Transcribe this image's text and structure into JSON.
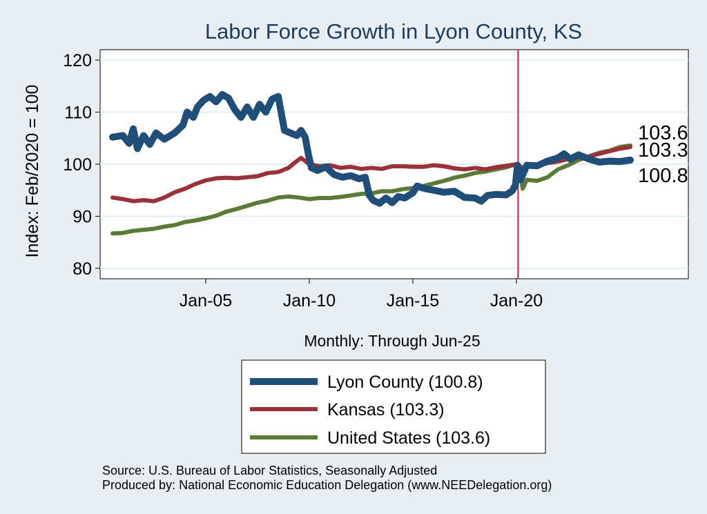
{
  "chart_data": {
    "type": "line",
    "title": "Labor Force Growth in Lyon  County, KS",
    "ylabel": "Index: Feb/2020 = 100",
    "xlabel": "Monthly: Through Jun-25",
    "ylim": [
      78,
      122
    ],
    "xlim": [
      1999.9,
      2028.3
    ],
    "yticks": [
      80,
      90,
      100,
      110,
      120
    ],
    "xticks": [
      {
        "x": 2005,
        "label": "Jan-05"
      },
      {
        "x": 2010,
        "label": "Jan-10"
      },
      {
        "x": 2015,
        "label": "Jan-15"
      },
      {
        "x": 2020,
        "label": "Jan-20"
      }
    ],
    "reference_line": {
      "x": 2020.08,
      "color": "#b5253d"
    },
    "grid": "horizontal",
    "series": [
      {
        "name": "Lyon  County",
        "color": "#1f4e79",
        "width": 10,
        "last_value": 100.8,
        "legend": "Lyon  County (100.8)",
        "points": [
          [
            2000.5,
            105.2
          ],
          [
            2001.0,
            105.5
          ],
          [
            2001.3,
            104.0
          ],
          [
            2001.5,
            106.8
          ],
          [
            2001.7,
            103.0
          ],
          [
            2002.0,
            105.5
          ],
          [
            2002.3,
            103.8
          ],
          [
            2002.6,
            106.0
          ],
          [
            2003.0,
            104.8
          ],
          [
            2003.5,
            106.0
          ],
          [
            2003.9,
            107.5
          ],
          [
            2004.1,
            110.0
          ],
          [
            2004.4,
            109.0
          ],
          [
            2004.6,
            111.0
          ],
          [
            2004.9,
            112.3
          ],
          [
            2005.2,
            113.0
          ],
          [
            2005.5,
            112.0
          ],
          [
            2005.8,
            113.4
          ],
          [
            2006.1,
            112.7
          ],
          [
            2006.4,
            110.5
          ],
          [
            2006.7,
            109.0
          ],
          [
            2007.0,
            111.0
          ],
          [
            2007.3,
            109.0
          ],
          [
            2007.6,
            111.5
          ],
          [
            2007.9,
            110.0
          ],
          [
            2008.2,
            112.5
          ],
          [
            2008.5,
            113.0
          ],
          [
            2008.8,
            106.5
          ],
          [
            2009.1,
            106.0
          ],
          [
            2009.4,
            105.5
          ],
          [
            2009.6,
            106.5
          ],
          [
            2009.8,
            105.2
          ],
          [
            2009.95,
            102.0
          ],
          [
            2010.1,
            99.3
          ],
          [
            2010.4,
            98.8
          ],
          [
            2010.8,
            99.5
          ],
          [
            2011.2,
            98.0
          ],
          [
            2011.6,
            97.5
          ],
          [
            2012.0,
            97.8
          ],
          [
            2012.4,
            97.2
          ],
          [
            2012.7,
            97.5
          ],
          [
            2012.9,
            94.0
          ],
          [
            2013.1,
            93.0
          ],
          [
            2013.4,
            92.5
          ],
          [
            2013.7,
            93.5
          ],
          [
            2014.0,
            92.6
          ],
          [
            2014.3,
            93.8
          ],
          [
            2014.6,
            93.5
          ],
          [
            2015.0,
            94.5
          ],
          [
            2015.2,
            95.8
          ],
          [
            2015.6,
            95.3
          ],
          [
            2016.0,
            95.0
          ],
          [
            2016.5,
            94.6
          ],
          [
            2017.0,
            94.8
          ],
          [
            2017.5,
            93.6
          ],
          [
            2018.0,
            93.5
          ],
          [
            2018.3,
            92.9
          ],
          [
            2018.6,
            94.0
          ],
          [
            2019.0,
            94.2
          ],
          [
            2019.5,
            94.1
          ],
          [
            2019.8,
            94.9
          ],
          [
            2019.95,
            96.0
          ],
          [
            2020.05,
            99.8
          ],
          [
            2020.2,
            97.0
          ],
          [
            2020.5,
            99.8
          ],
          [
            2021.0,
            99.7
          ],
          [
            2021.5,
            100.6
          ],
          [
            2022.0,
            101.2
          ],
          [
            2022.3,
            102.0
          ],
          [
            2022.6,
            101.0
          ],
          [
            2023.0,
            101.8
          ],
          [
            2023.5,
            101.0
          ],
          [
            2024.0,
            100.4
          ],
          [
            2024.5,
            100.6
          ],
          [
            2025.0,
            100.5
          ],
          [
            2025.5,
            100.8
          ]
        ]
      },
      {
        "name": "Kansas",
        "color": "#9b3139",
        "width": 6,
        "last_value": 103.3,
        "legend": "Kansas (103.3)",
        "points": [
          [
            2000.5,
            93.6
          ],
          [
            2001.0,
            93.3
          ],
          [
            2001.5,
            92.9
          ],
          [
            2002.0,
            93.1
          ],
          [
            2002.5,
            92.9
          ],
          [
            2003.0,
            93.6
          ],
          [
            2003.5,
            94.6
          ],
          [
            2004.0,
            95.3
          ],
          [
            2004.5,
            96.2
          ],
          [
            2005.0,
            96.9
          ],
          [
            2005.5,
            97.3
          ],
          [
            2006.0,
            97.4
          ],
          [
            2006.5,
            97.3
          ],
          [
            2007.0,
            97.5
          ],
          [
            2007.5,
            97.7
          ],
          [
            2008.0,
            98.3
          ],
          [
            2008.5,
            98.5
          ],
          [
            2009.0,
            99.3
          ],
          [
            2009.3,
            100.3
          ],
          [
            2009.6,
            101.2
          ],
          [
            2010.0,
            100.0
          ],
          [
            2010.5,
            99.6
          ],
          [
            2011.0,
            99.8
          ],
          [
            2011.5,
            99.3
          ],
          [
            2012.0,
            99.5
          ],
          [
            2012.5,
            99.1
          ],
          [
            2013.0,
            99.3
          ],
          [
            2013.5,
            99.1
          ],
          [
            2014.0,
            99.6
          ],
          [
            2014.5,
            99.6
          ],
          [
            2015.0,
            99.5
          ],
          [
            2015.5,
            99.5
          ],
          [
            2016.0,
            99.8
          ],
          [
            2016.5,
            99.6
          ],
          [
            2017.0,
            99.2
          ],
          [
            2017.5,
            99.0
          ],
          [
            2018.0,
            99.3
          ],
          [
            2018.5,
            99.0
          ],
          [
            2019.0,
            99.4
          ],
          [
            2019.5,
            99.7
          ],
          [
            2020.0,
            100.0
          ],
          [
            2020.3,
            99.3
          ],
          [
            2020.6,
            100.0
          ],
          [
            2021.0,
            99.8
          ],
          [
            2021.5,
            100.2
          ],
          [
            2022.0,
            100.5
          ],
          [
            2022.5,
            101.0
          ],
          [
            2023.0,
            101.3
          ],
          [
            2023.5,
            101.5
          ],
          [
            2024.0,
            102.0
          ],
          [
            2024.5,
            102.5
          ],
          [
            2025.0,
            103.0
          ],
          [
            2025.5,
            103.3
          ]
        ]
      },
      {
        "name": "United States",
        "color": "#5a7a35",
        "width": 6,
        "last_value": 103.6,
        "legend": "United States (103.6)",
        "points": [
          [
            2000.5,
            86.7
          ],
          [
            2001.0,
            86.8
          ],
          [
            2001.5,
            87.2
          ],
          [
            2002.0,
            87.4
          ],
          [
            2002.5,
            87.6
          ],
          [
            2003.0,
            88.0
          ],
          [
            2003.5,
            88.3
          ],
          [
            2004.0,
            88.9
          ],
          [
            2004.5,
            89.2
          ],
          [
            2005.0,
            89.6
          ],
          [
            2005.5,
            90.1
          ],
          [
            2006.0,
            90.9
          ],
          [
            2006.5,
            91.4
          ],
          [
            2007.0,
            92.0
          ],
          [
            2007.5,
            92.6
          ],
          [
            2008.0,
            93.0
          ],
          [
            2008.5,
            93.6
          ],
          [
            2009.0,
            93.8
          ],
          [
            2009.5,
            93.6
          ],
          [
            2010.0,
            93.3
          ],
          [
            2010.5,
            93.5
          ],
          [
            2011.0,
            93.5
          ],
          [
            2011.5,
            93.7
          ],
          [
            2012.0,
            94.0
          ],
          [
            2012.5,
            94.3
          ],
          [
            2013.0,
            94.4
          ],
          [
            2013.5,
            94.8
          ],
          [
            2014.0,
            94.8
          ],
          [
            2014.5,
            95.2
          ],
          [
            2015.0,
            95.4
          ],
          [
            2015.5,
            95.8
          ],
          [
            2016.0,
            96.3
          ],
          [
            2016.5,
            96.8
          ],
          [
            2017.0,
            97.4
          ],
          [
            2017.5,
            97.8
          ],
          [
            2018.0,
            98.3
          ],
          [
            2018.5,
            98.6
          ],
          [
            2019.0,
            99.0
          ],
          [
            2019.5,
            99.4
          ],
          [
            2020.0,
            100.0
          ],
          [
            2020.15,
            99.5
          ],
          [
            2020.3,
            95.3
          ],
          [
            2020.5,
            97.0
          ],
          [
            2021.0,
            96.8
          ],
          [
            2021.5,
            97.5
          ],
          [
            2022.0,
            99.0
          ],
          [
            2022.5,
            99.8
          ],
          [
            2023.0,
            100.8
          ],
          [
            2023.5,
            101.5
          ],
          [
            2024.0,
            102.2
          ],
          [
            2024.5,
            102.6
          ],
          [
            2025.0,
            103.3
          ],
          [
            2025.5,
            103.6
          ]
        ]
      }
    ],
    "end_labels": [
      "103.6",
      "103.3",
      "100.8"
    ]
  },
  "source_lines": [
    "Source: U.S. Bureau of Labor Statistics, Seasonally Adjusted",
    "Produced by: National Economic Education Delegation (www.NEEDelegation.org)"
  ]
}
